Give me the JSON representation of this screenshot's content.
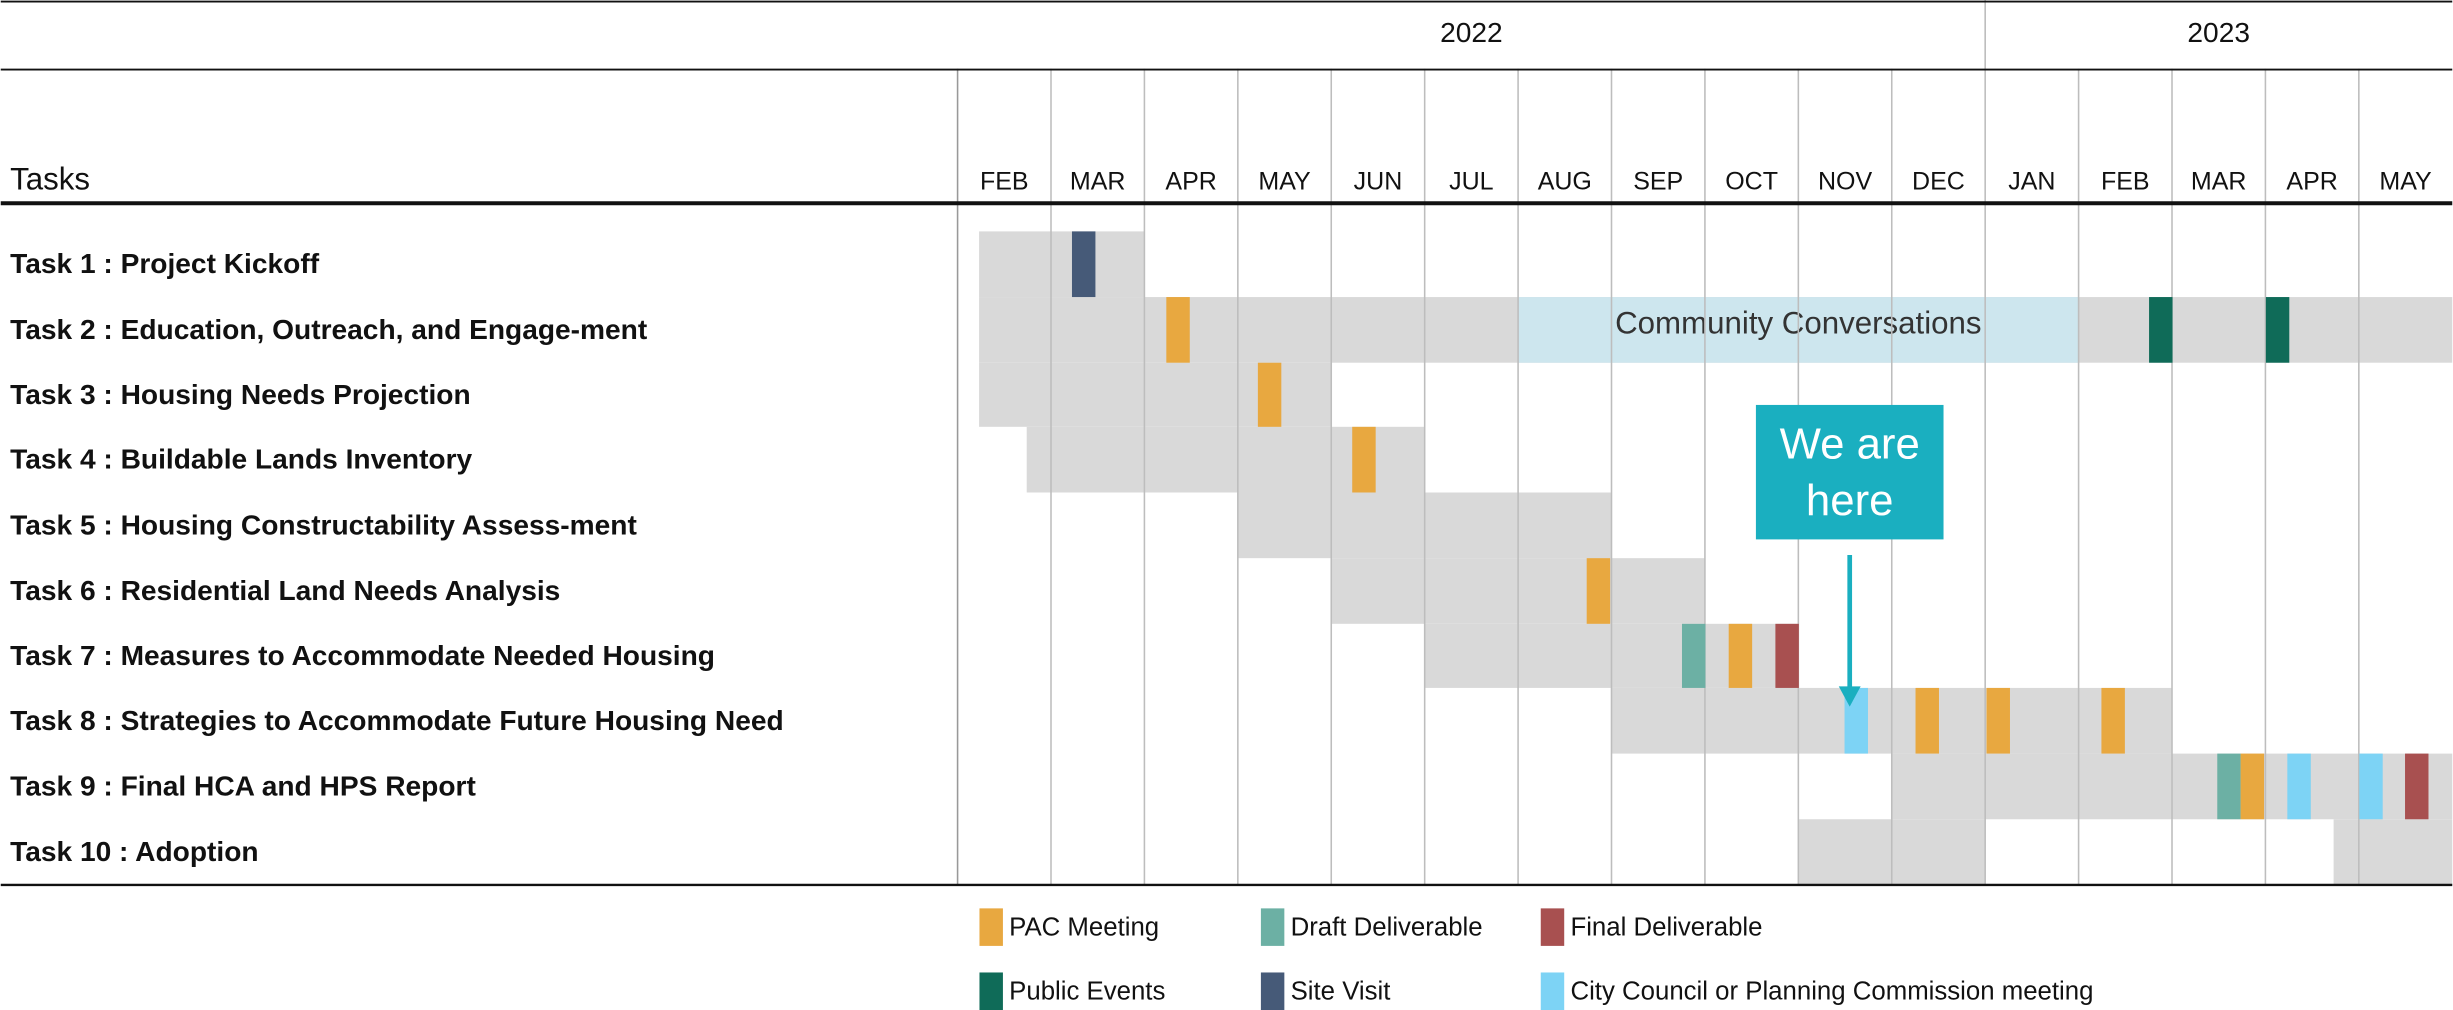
{
  "chart_data": {
    "type": "gantt",
    "row_header": "Tasks",
    "xlim": [
      0,
      16
    ],
    "years": [
      {
        "label": "2022",
        "start": 0,
        "end": 11
      },
      {
        "label": "2023",
        "start": 11,
        "end": 16
      }
    ],
    "categories": [
      "FEB",
      "MAR",
      "APR",
      "MAY",
      "JUN",
      "JUL",
      "AUG",
      "SEP",
      "OCT",
      "NOV",
      "DEC",
      "JAN",
      "FEB",
      "MAR",
      "APR",
      "MAY"
    ],
    "bar_color": "#d9d9d9",
    "tasks": [
      {
        "label": "Task 1 : Project Kickoff",
        "segments": [
          [
            0.23,
            2.0
          ]
        ],
        "milestones": [
          {
            "kind": "Site Visit",
            "x": 1.35
          }
        ]
      },
      {
        "label": "Task 2 : Education, Outreach, and Engage-ment",
        "segments": [
          [
            0.23,
            16
          ]
        ],
        "highlight": {
          "label": "Community Conversations",
          "start": 6.0,
          "end": 12.0,
          "color": "#cde6ee"
        },
        "milestones": [
          {
            "kind": "PAC Meeting",
            "x": 2.36
          },
          {
            "kind": "Public Events",
            "x": 12.88
          },
          {
            "kind": "Public Events",
            "x": 14.13
          }
        ]
      },
      {
        "label": "Task 3 : Housing Needs Projection",
        "segments": [
          [
            0.23,
            4.0
          ]
        ],
        "milestones": [
          {
            "kind": "PAC Meeting",
            "x": 3.34
          }
        ]
      },
      {
        "label": "Task 4 : Buildable Lands Inventory",
        "segments": [
          [
            0.74,
            5.0
          ]
        ],
        "milestones": [
          {
            "kind": "PAC Meeting",
            "x": 4.35
          }
        ]
      },
      {
        "label": "Task 5 : Housing Constructability Assess-ment",
        "segments": [
          [
            3.0,
            7.0
          ]
        ],
        "milestones": []
      },
      {
        "label": "Task 6 : Residential Land Needs Analysis",
        "segments": [
          [
            4.0,
            8.0
          ]
        ],
        "milestones": [
          {
            "kind": "PAC Meeting",
            "x": 6.86
          }
        ]
      },
      {
        "label": "Task 7 : Measures to Accommodate Needed Housing",
        "segments": [
          [
            5.0,
            9.0
          ]
        ],
        "milestones": [
          {
            "kind": "Draft Deliverable",
            "x": 7.88
          },
          {
            "kind": "PAC Meeting",
            "x": 8.38
          },
          {
            "kind": "Final Deliverable",
            "x": 8.88
          }
        ]
      },
      {
        "label": "Task 8 : Strategies to Accommodate Future Housing Need",
        "segments": [
          [
            7.0,
            13.0
          ]
        ],
        "milestones": [
          {
            "kind": "City Council or Planning Commission meeting",
            "x": 9.62
          },
          {
            "kind": "PAC Meeting",
            "x": 10.38
          },
          {
            "kind": "PAC Meeting",
            "x": 11.14
          },
          {
            "kind": "PAC Meeting",
            "x": 12.37
          }
        ]
      },
      {
        "label": "Task 9 : Final HCA and HPS Report",
        "segments": [
          [
            10.0,
            16
          ]
        ],
        "milestones": [
          {
            "kind": "Draft Deliverable",
            "x": 13.61
          },
          {
            "kind": "PAC Meeting",
            "x": 13.86
          },
          {
            "kind": "City Council or Planning Commission meeting",
            "x": 14.36
          },
          {
            "kind": "City Council or Planning Commission meeting",
            "x": 15.13
          },
          {
            "kind": "Final Deliverable",
            "x": 15.62
          }
        ]
      },
      {
        "label": "Task 10 : Adoption",
        "segments": [
          [
            9.0,
            11.0
          ],
          [
            14.73,
            16
          ]
        ],
        "milestones": []
      }
    ],
    "annotation": {
      "lines": [
        "We are",
        "here"
      ],
      "x": 9.55,
      "color": "#1aafc0"
    },
    "legend": [
      {
        "name": "PAC Meeting",
        "color": "#e8a840"
      },
      {
        "name": "Draft Deliverable",
        "color": "#6cb0a4"
      },
      {
        "name": "Final Deliverable",
        "color": "#a85050"
      },
      {
        "name": "Public Events",
        "color": "#0f6b58"
      },
      {
        "name": "Site Visit",
        "color": "#465a78"
      },
      {
        "name": "City Council or Planning Commission meeting",
        "color": "#7dd3f5"
      }
    ]
  }
}
